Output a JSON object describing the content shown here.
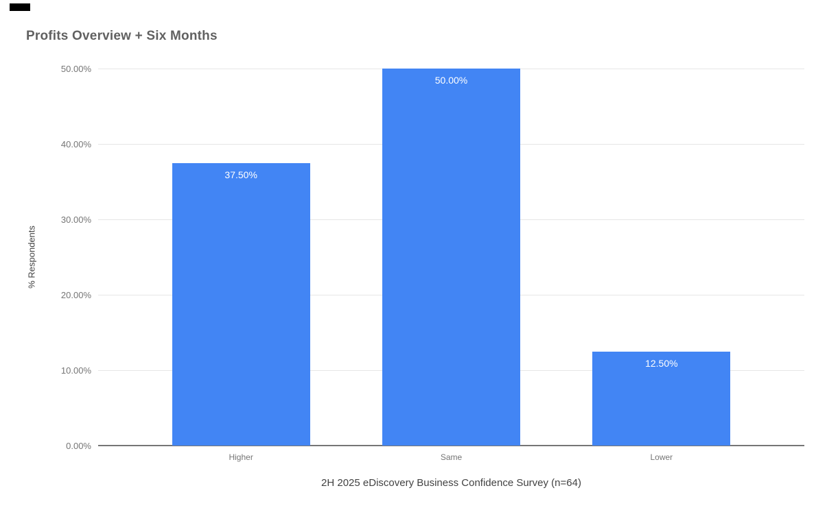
{
  "decorations": {
    "top_left_bar_color": "#000000"
  },
  "chart_data": {
    "type": "bar",
    "title": "Profits Overview + Six Months",
    "categories": [
      "Higher",
      "Same",
      "Lower"
    ],
    "values": [
      37.5,
      50,
      12.5
    ],
    "value_labels": [
      "37.50%",
      "50.00%",
      "12.50%"
    ],
    "xlabel": "2H 2025 eDiscovery Business Confidence Survey (n=64)",
    "ylabel": "% Respondents",
    "ylim": [
      0,
      50
    ],
    "yticks": [
      0,
      10,
      20,
      30,
      40,
      50
    ],
    "ytick_labels": [
      "0.00%",
      "10.00%",
      "20.00%",
      "30.00%",
      "40.00%",
      "50.00%"
    ],
    "grid": true,
    "legend": "none",
    "colors": {
      "bar": "#4285f4",
      "bar_value_label": "#ffffff",
      "title": "#616161",
      "tick_label": "#757575",
      "category_label": "#757575",
      "axis_title": "#424242",
      "gridline": "#e6e6e6",
      "baseline": "#757575",
      "background": "#ffffff"
    }
  }
}
